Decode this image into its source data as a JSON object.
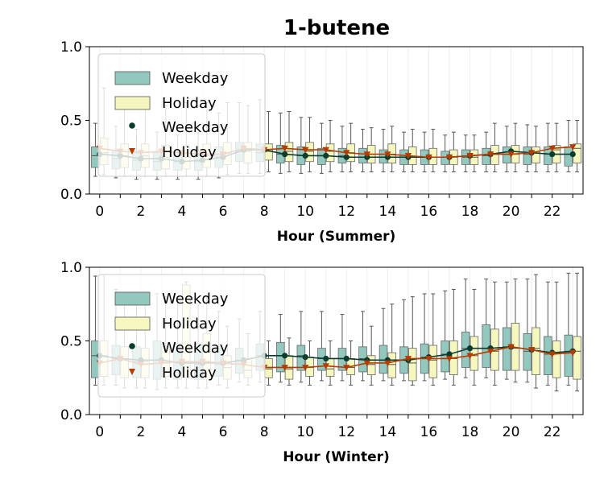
{
  "title": "1-butene",
  "colors": {
    "weekday_box": "#93c8bf",
    "holiday_box": "#f6f6bf",
    "weekday_line": "#0b3d2e",
    "holiday_line": "#b33d00",
    "whisker": "#555555"
  },
  "legend": [
    "Weekday",
    "Holiday",
    "Weekday",
    "Holiday"
  ],
  "chart_data": [
    {
      "type": "box",
      "xlabel": "Hour (Summer)",
      "ylabel": "",
      "ylim": [
        0,
        1
      ],
      "yticks": [
        "0.0",
        "0.5",
        "1.0"
      ],
      "xticks": [
        "0",
        "2",
        "4",
        "6",
        "8",
        "10",
        "12",
        "14",
        "16",
        "18",
        "20",
        "22"
      ],
      "legend_position": "upper-left",
      "grid": "vertical",
      "hours": [
        0,
        1,
        2,
        3,
        4,
        5,
        6,
        7,
        8,
        9,
        10,
        11,
        12,
        13,
        14,
        15,
        16,
        17,
        18,
        19,
        20,
        21,
        22,
        23
      ],
      "series": [
        {
          "name": "Weekday",
          "kind": "box",
          "boxes": [
            [
              0.12,
              0.18,
              0.26,
              0.32,
              0.48
            ],
            [
              0.11,
              0.17,
              0.24,
              0.3,
              0.46
            ],
            [
              0.1,
              0.16,
              0.23,
              0.29,
              0.44
            ],
            [
              0.1,
              0.16,
              0.22,
              0.28,
              0.42
            ],
            [
              0.1,
              0.16,
              0.22,
              0.28,
              0.4
            ],
            [
              0.1,
              0.16,
              0.22,
              0.29,
              0.42
            ],
            [
              0.11,
              0.18,
              0.25,
              0.32,
              0.55
            ],
            [
              0.14,
              0.22,
              0.29,
              0.35,
              0.62
            ],
            [
              0.14,
              0.22,
              0.28,
              0.34,
              0.64
            ],
            [
              0.14,
              0.21,
              0.27,
              0.33,
              0.55
            ],
            [
              0.14,
              0.2,
              0.26,
              0.32,
              0.52
            ],
            [
              0.14,
              0.2,
              0.26,
              0.31,
              0.48
            ],
            [
              0.15,
              0.21,
              0.26,
              0.31,
              0.46
            ],
            [
              0.15,
              0.21,
              0.25,
              0.31,
              0.44
            ],
            [
              0.15,
              0.21,
              0.25,
              0.3,
              0.44
            ],
            [
              0.15,
              0.2,
              0.25,
              0.3,
              0.42
            ],
            [
              0.15,
              0.2,
              0.25,
              0.3,
              0.42
            ],
            [
              0.15,
              0.2,
              0.25,
              0.29,
              0.4
            ],
            [
              0.15,
              0.2,
              0.25,
              0.3,
              0.4
            ],
            [
              0.15,
              0.2,
              0.26,
              0.31,
              0.42
            ],
            [
              0.15,
              0.21,
              0.27,
              0.32,
              0.46
            ],
            [
              0.15,
              0.2,
              0.27,
              0.32,
              0.47
            ],
            [
              0.15,
              0.2,
              0.27,
              0.32,
              0.48
            ],
            [
              0.15,
              0.19,
              0.27,
              0.32,
              0.5
            ]
          ],
          "line": [
            0.27,
            0.26,
            0.24,
            0.24,
            0.22,
            0.23,
            0.25,
            0.3,
            0.3,
            0.27,
            0.26,
            0.26,
            0.25,
            0.25,
            0.25,
            0.25,
            0.25,
            0.25,
            0.26,
            0.27,
            0.29,
            0.28,
            0.27,
            0.27
          ]
        },
        {
          "name": "Holiday",
          "kind": "box",
          "boxes": [
            [
              0.13,
              0.2,
              0.28,
              0.38,
              0.72
            ],
            [
              0.12,
              0.18,
              0.26,
              0.34,
              0.65
            ],
            [
              0.12,
              0.18,
              0.26,
              0.34,
              0.62
            ],
            [
              0.12,
              0.17,
              0.25,
              0.33,
              0.6
            ],
            [
              0.12,
              0.17,
              0.25,
              0.32,
              0.62
            ],
            [
              0.12,
              0.18,
              0.26,
              0.34,
              0.62
            ],
            [
              0.13,
              0.2,
              0.28,
              0.35,
              0.62
            ],
            [
              0.14,
              0.21,
              0.29,
              0.35,
              0.6
            ],
            [
              0.15,
              0.23,
              0.29,
              0.34,
              0.56
            ],
            [
              0.15,
              0.22,
              0.29,
              0.35,
              0.56
            ],
            [
              0.15,
              0.22,
              0.29,
              0.35,
              0.52
            ],
            [
              0.15,
              0.22,
              0.29,
              0.34,
              0.5
            ],
            [
              0.15,
              0.22,
              0.28,
              0.34,
              0.48
            ],
            [
              0.15,
              0.21,
              0.27,
              0.33,
              0.45
            ],
            [
              0.15,
              0.21,
              0.27,
              0.34,
              0.46
            ],
            [
              0.15,
              0.2,
              0.25,
              0.32,
              0.44
            ],
            [
              0.15,
              0.2,
              0.25,
              0.31,
              0.44
            ],
            [
              0.15,
              0.2,
              0.25,
              0.3,
              0.42
            ],
            [
              0.15,
              0.2,
              0.25,
              0.3,
              0.4
            ],
            [
              0.15,
              0.2,
              0.27,
              0.33,
              0.48
            ],
            [
              0.15,
              0.21,
              0.27,
              0.33,
              0.48
            ],
            [
              0.15,
              0.21,
              0.28,
              0.32,
              0.46
            ],
            [
              0.15,
              0.21,
              0.3,
              0.33,
              0.48
            ],
            [
              0.15,
              0.21,
              0.31,
              0.34,
              0.5
            ]
          ],
          "line": [
            0.31,
            0.29,
            0.28,
            0.29,
            0.28,
            0.27,
            0.27,
            0.31,
            0.3,
            0.31,
            0.3,
            0.3,
            0.28,
            0.27,
            0.27,
            0.26,
            0.25,
            0.25,
            0.26,
            0.27,
            0.27,
            0.28,
            0.31,
            0.32
          ]
        }
      ]
    },
    {
      "type": "box",
      "xlabel": "Hour (Winter)",
      "ylabel": "",
      "ylim": [
        0,
        1
      ],
      "yticks": [
        "0.0",
        "0.5",
        "1.0"
      ],
      "xticks": [
        "0",
        "2",
        "4",
        "6",
        "8",
        "10",
        "12",
        "14",
        "16",
        "18",
        "20",
        "22"
      ],
      "legend_position": "upper-left",
      "grid": "vertical",
      "hours": [
        0,
        1,
        2,
        3,
        4,
        5,
        6,
        7,
        8,
        9,
        10,
        11,
        12,
        13,
        14,
        15,
        16,
        17,
        18,
        19,
        20,
        21,
        22,
        23
      ],
      "series": [
        {
          "name": "Weekday",
          "kind": "box",
          "boxes": [
            [
              0.2,
              0.25,
              0.4,
              0.5,
              0.94
            ],
            [
              0.2,
              0.27,
              0.38,
              0.47,
              0.85
            ],
            [
              0.18,
              0.25,
              0.36,
              0.46,
              0.8
            ],
            [
              0.17,
              0.24,
              0.37,
              0.5,
              0.82
            ],
            [
              0.18,
              0.24,
              0.35,
              0.48,
              0.8
            ],
            [
              0.18,
              0.24,
              0.34,
              0.48,
              0.75
            ],
            [
              0.2,
              0.26,
              0.34,
              0.45,
              0.7
            ],
            [
              0.22,
              0.28,
              0.37,
              0.45,
              0.65
            ],
            [
              0.22,
              0.3,
              0.4,
              0.48,
              0.7
            ],
            [
              0.22,
              0.29,
              0.4,
              0.49,
              0.68
            ],
            [
              0.22,
              0.3,
              0.4,
              0.47,
              0.7
            ],
            [
              0.23,
              0.3,
              0.38,
              0.45,
              0.7
            ],
            [
              0.23,
              0.3,
              0.38,
              0.45,
              0.68
            ],
            [
              0.23,
              0.29,
              0.38,
              0.46,
              0.7
            ],
            [
              0.23,
              0.28,
              0.37,
              0.47,
              0.72
            ],
            [
              0.23,
              0.28,
              0.37,
              0.46,
              0.78
            ],
            [
              0.23,
              0.28,
              0.39,
              0.48,
              0.82
            ],
            [
              0.24,
              0.29,
              0.41,
              0.5,
              0.84
            ],
            [
              0.25,
              0.32,
              0.45,
              0.56,
              0.92
            ],
            [
              0.25,
              0.32,
              0.45,
              0.61,
              0.92
            ],
            [
              0.24,
              0.3,
              0.46,
              0.59,
              0.9
            ],
            [
              0.22,
              0.3,
              0.43,
              0.55,
              0.92
            ],
            [
              0.2,
              0.27,
              0.41,
              0.53,
              0.9
            ],
            [
              0.2,
              0.26,
              0.43,
              0.54,
              0.96
            ]
          ],
          "line": [
            0.4,
            0.38,
            0.37,
            0.37,
            0.35,
            0.35,
            0.35,
            0.37,
            0.4,
            0.4,
            0.39,
            0.38,
            0.38,
            0.37,
            0.37,
            0.37,
            0.39,
            0.41,
            0.45,
            0.45,
            0.46,
            0.44,
            0.42,
            0.43
          ]
        },
        {
          "name": "Holiday",
          "kind": "box",
          "boxes": [
            [
              0.2,
              0.26,
              0.4,
              0.5,
              0.95
            ],
            [
              0.18,
              0.25,
              0.38,
              0.46,
              0.8
            ],
            [
              0.18,
              0.25,
              0.36,
              0.45,
              0.8
            ],
            [
              0.18,
              0.26,
              0.35,
              0.46,
              0.8
            ],
            [
              0.18,
              0.25,
              0.44,
              0.88,
              0.9
            ],
            [
              0.18,
              0.24,
              0.36,
              0.55,
              0.8
            ],
            [
              0.18,
              0.24,
              0.32,
              0.4,
              0.6
            ],
            [
              0.2,
              0.25,
              0.3,
              0.38,
              0.55
            ],
            [
              0.2,
              0.25,
              0.31,
              0.38,
              0.5
            ],
            [
              0.2,
              0.24,
              0.31,
              0.4,
              0.52
            ],
            [
              0.2,
              0.26,
              0.32,
              0.39,
              0.5
            ],
            [
              0.2,
              0.26,
              0.31,
              0.38,
              0.5
            ],
            [
              0.2,
              0.27,
              0.32,
              0.38,
              0.5
            ],
            [
              0.2,
              0.27,
              0.34,
              0.4,
              0.6
            ],
            [
              0.2,
              0.25,
              0.34,
              0.42,
              0.75
            ],
            [
              0.2,
              0.23,
              0.35,
              0.45,
              0.8
            ],
            [
              0.2,
              0.25,
              0.37,
              0.47,
              0.82
            ],
            [
              0.2,
              0.27,
              0.38,
              0.5,
              0.85
            ],
            [
              0.2,
              0.3,
              0.4,
              0.53,
              0.85
            ],
            [
              0.2,
              0.3,
              0.43,
              0.58,
              0.9
            ],
            [
              0.22,
              0.3,
              0.45,
              0.62,
              0.92
            ],
            [
              0.18,
              0.27,
              0.45,
              0.59,
              0.95
            ],
            [
              0.16,
              0.25,
              0.42,
              0.5,
              0.9
            ],
            [
              0.16,
              0.24,
              0.43,
              0.53,
              0.96
            ]
          ],
          "line": [
            0.35,
            0.38,
            0.34,
            0.35,
            0.36,
            0.36,
            0.35,
            0.34,
            0.32,
            0.32,
            0.32,
            0.33,
            0.32,
            0.35,
            0.35,
            0.38,
            0.38,
            0.38,
            0.4,
            0.43,
            0.46,
            0.44,
            0.41,
            0.42
          ]
        }
      ]
    }
  ]
}
